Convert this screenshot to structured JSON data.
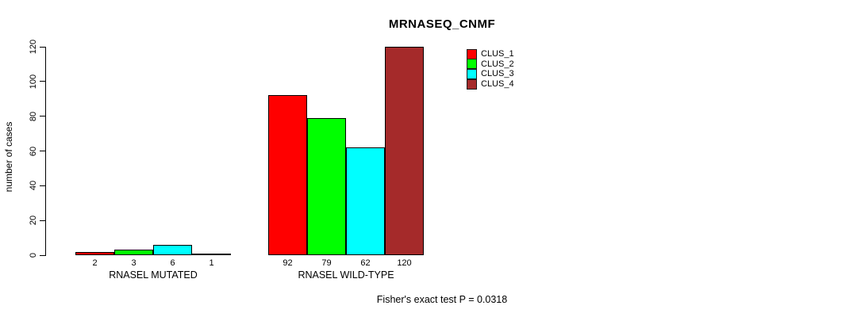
{
  "chart_data": {
    "type": "bar",
    "title": "MRNASEQ_CNMF",
    "xlabel": "",
    "ylabel": "number of cases",
    "ylim": [
      0,
      120
    ],
    "y_ticks": [
      0,
      20,
      40,
      60,
      80,
      100,
      120
    ],
    "grid": false,
    "legend_position": "top-right",
    "bar_value_labels_shown": true,
    "series": [
      {
        "name": "CLUS_1",
        "color": "#ff0000"
      },
      {
        "name": "CLUS_2",
        "color": "#00ff00"
      },
      {
        "name": "CLUS_3",
        "color": "#00ffff"
      },
      {
        "name": "CLUS_4",
        "color": "#a52a2a"
      }
    ],
    "groups": [
      {
        "label": "RNASEL MUTATED",
        "values": [
          2,
          3,
          6,
          1
        ]
      },
      {
        "label": "RNASEL WILD-TYPE",
        "values": [
          92,
          79,
          62,
          120
        ]
      }
    ]
  },
  "annotation": {
    "text": "Fisher's exact test P = 0.0318"
  }
}
